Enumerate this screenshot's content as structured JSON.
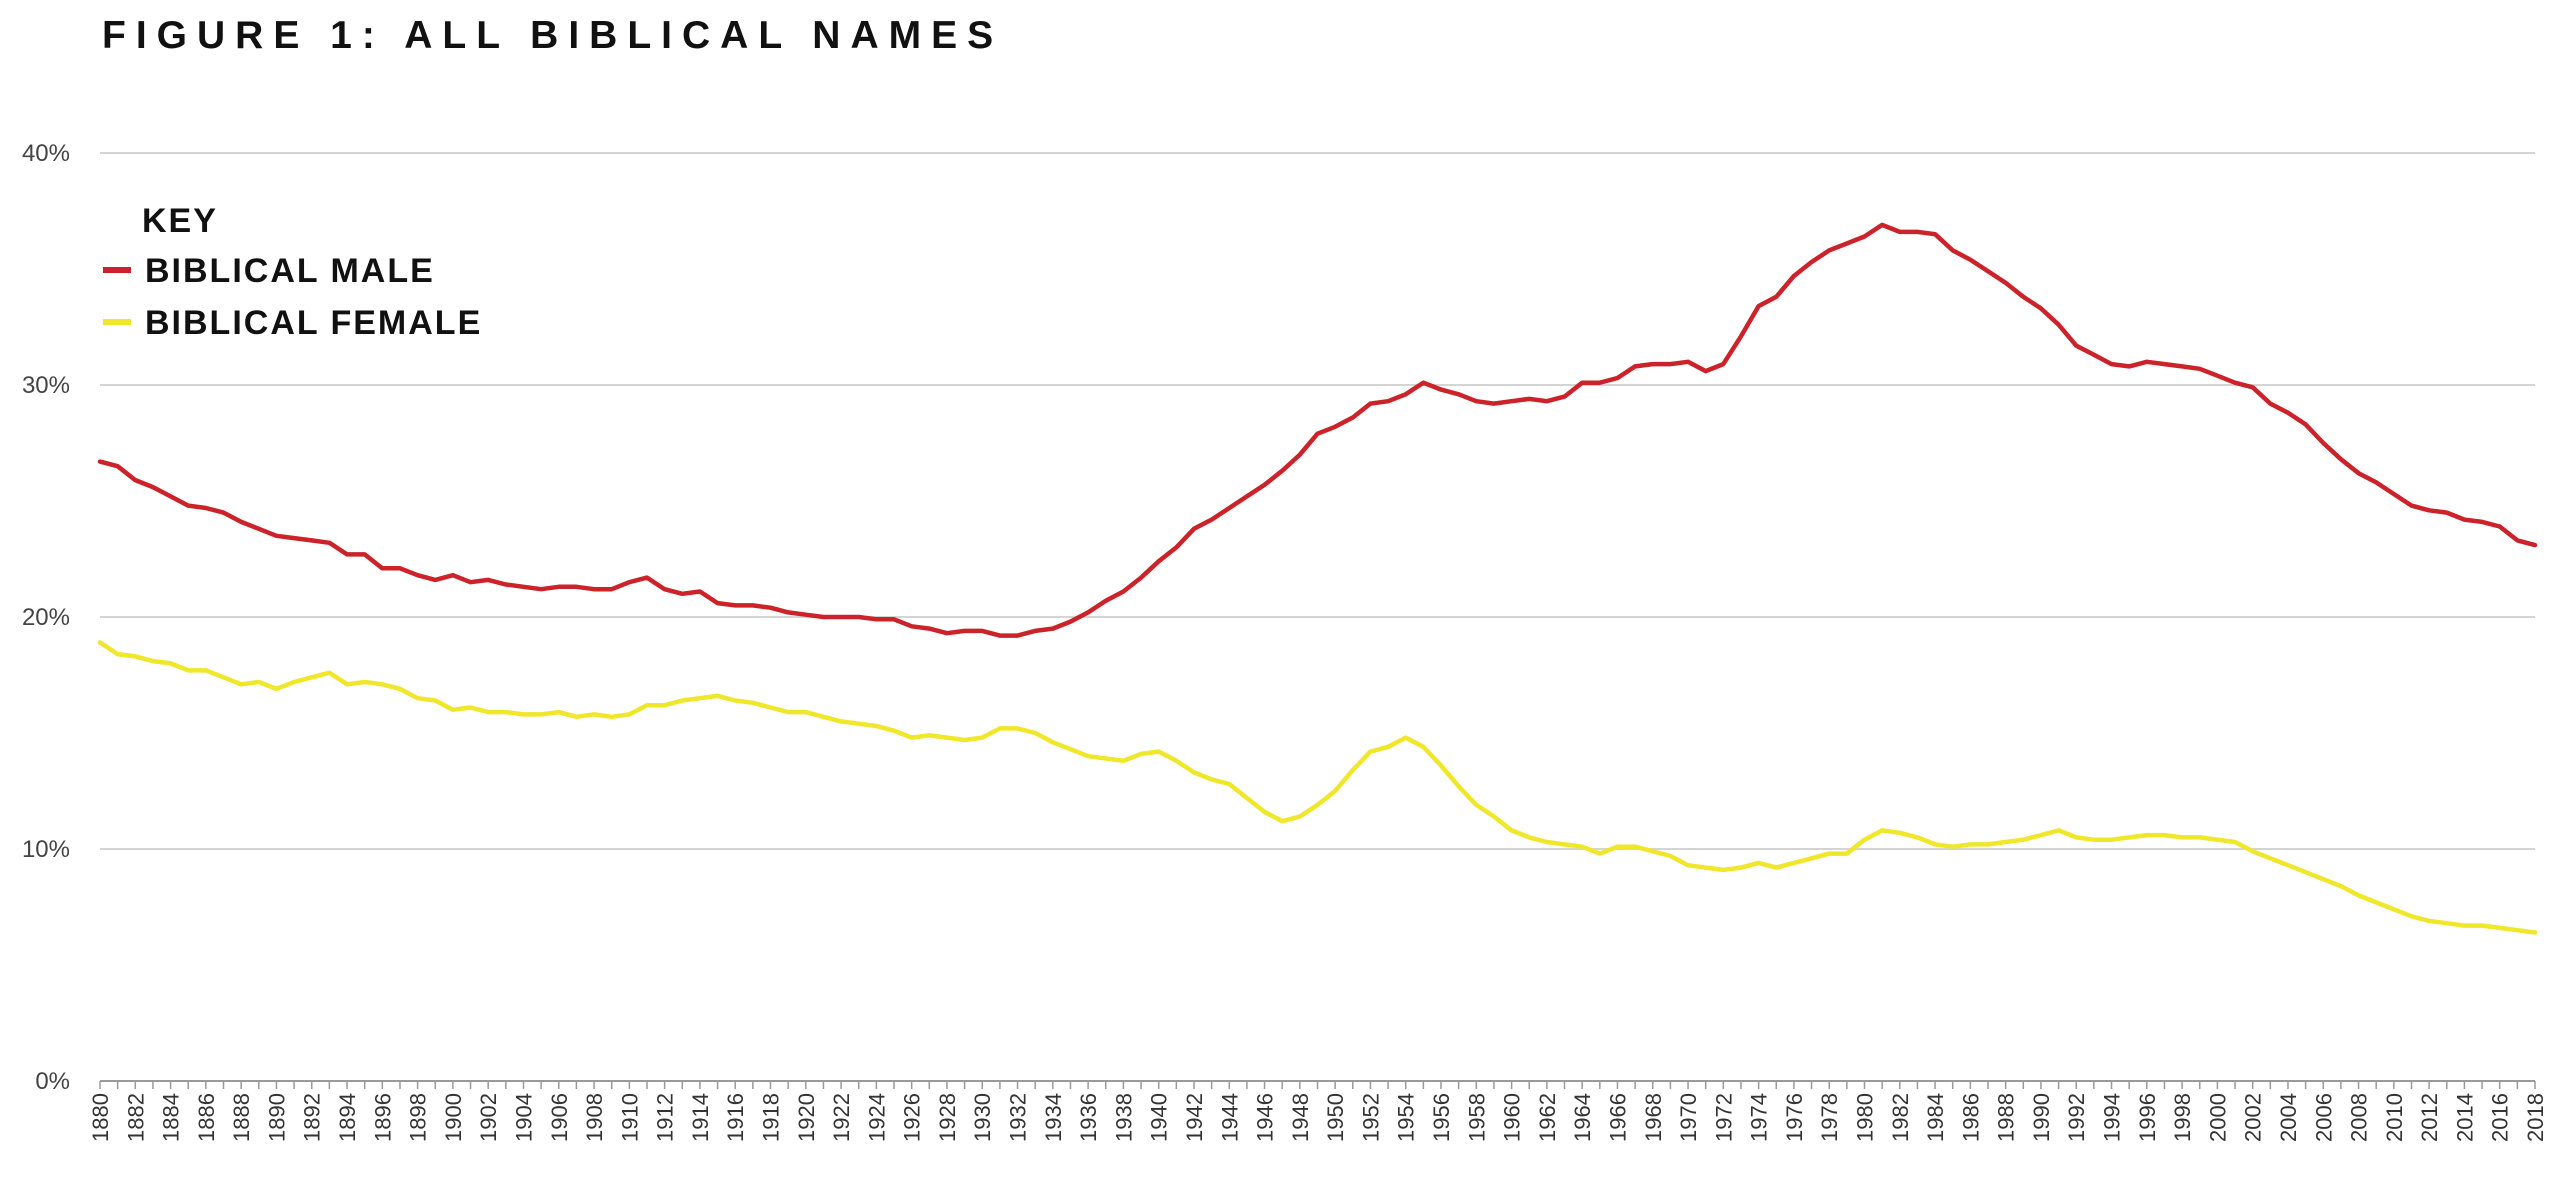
{
  "chart_data": {
    "type": "line",
    "title": "FIGURE 1: ALL BIBLICAL NAMES",
    "xlabel": "",
    "ylabel": "",
    "ylim": [
      0,
      40
    ],
    "yticks": [
      "0%",
      "10%",
      "20%",
      "30%",
      "40%"
    ],
    "ytick_values": [
      0,
      10,
      20,
      30,
      40
    ],
    "x": [
      1880,
      1881,
      1882,
      1883,
      1884,
      1885,
      1886,
      1887,
      1888,
      1889,
      1890,
      1891,
      1892,
      1893,
      1894,
      1895,
      1896,
      1897,
      1898,
      1899,
      1900,
      1901,
      1902,
      1903,
      1904,
      1905,
      1906,
      1907,
      1908,
      1909,
      1910,
      1911,
      1912,
      1913,
      1914,
      1915,
      1916,
      1917,
      1918,
      1919,
      1920,
      1921,
      1922,
      1923,
      1924,
      1925,
      1926,
      1927,
      1928,
      1929,
      1930,
      1931,
      1932,
      1933,
      1934,
      1935,
      1936,
      1937,
      1938,
      1939,
      1940,
      1941,
      1942,
      1943,
      1944,
      1945,
      1946,
      1947,
      1948,
      1949,
      1950,
      1951,
      1952,
      1953,
      1954,
      1955,
      1956,
      1957,
      1958,
      1959,
      1960,
      1961,
      1962,
      1963,
      1964,
      1965,
      1966,
      1967,
      1968,
      1969,
      1970,
      1971,
      1972,
      1973,
      1974,
      1975,
      1976,
      1977,
      1978,
      1979,
      1980,
      1981,
      1982,
      1983,
      1984,
      1985,
      1986,
      1987,
      1988,
      1989,
      1990,
      1991,
      1992,
      1993,
      1994,
      1995,
      1996,
      1997,
      1998,
      1999,
      2000,
      2001,
      2002,
      2003,
      2004,
      2005,
      2006,
      2007,
      2008,
      2009,
      2010,
      2011,
      2012,
      2013,
      2014,
      2015,
      2016,
      2017,
      2018
    ],
    "series": [
      {
        "name": "BIBLICAL MALE",
        "color": "#cc2229",
        "values": [
          26.7,
          26.5,
          25.9,
          25.6,
          25.2,
          24.8,
          24.7,
          24.5,
          24.1,
          23.8,
          23.5,
          23.4,
          23.3,
          23.2,
          22.7,
          22.7,
          22.1,
          22.1,
          21.8,
          21.6,
          21.8,
          21.5,
          21.6,
          21.4,
          21.3,
          21.2,
          21.3,
          21.3,
          21.2,
          21.2,
          21.5,
          21.7,
          21.2,
          21.0,
          21.1,
          20.6,
          20.5,
          20.5,
          20.4,
          20.2,
          20.1,
          20.0,
          20.0,
          20.0,
          19.9,
          19.9,
          19.6,
          19.5,
          19.3,
          19.4,
          19.4,
          19.2,
          19.2,
          19.4,
          19.5,
          19.8,
          20.2,
          20.7,
          21.1,
          21.7,
          22.4,
          23.0,
          23.8,
          24.2,
          24.7,
          25.2,
          25.7,
          26.3,
          27.0,
          27.9,
          28.2,
          28.6,
          29.2,
          29.3,
          29.6,
          30.1,
          29.8,
          29.6,
          29.3,
          29.2,
          29.3,
          29.4,
          29.3,
          29.5,
          30.1,
          30.1,
          30.3,
          30.8,
          30.9,
          30.9,
          31.0,
          30.6,
          30.9,
          32.1,
          33.4,
          33.8,
          34.7,
          35.3,
          35.8,
          36.1,
          36.4,
          36.9,
          36.6,
          36.6,
          36.5,
          35.8,
          35.4,
          34.9,
          34.4,
          33.8,
          33.3,
          32.6,
          31.7,
          31.3,
          30.9,
          30.8,
          31.0,
          30.9,
          30.8,
          30.7,
          30.4,
          30.1,
          29.9,
          29.2,
          28.8,
          28.3,
          27.5,
          26.8,
          26.2,
          25.8,
          25.3,
          24.8,
          24.6,
          24.5,
          24.2,
          24.1,
          23.9,
          23.3,
          23.1
        ]
      },
      {
        "name": "BIBLICAL FEMALE",
        "color": "#f0e62a",
        "values": [
          18.9,
          18.4,
          18.3,
          18.1,
          18.0,
          17.7,
          17.7,
          17.4,
          17.1,
          17.2,
          16.9,
          17.2,
          17.4,
          17.6,
          17.1,
          17.2,
          17.1,
          16.9,
          16.5,
          16.4,
          16.0,
          16.1,
          15.9,
          15.9,
          15.8,
          15.8,
          15.9,
          15.7,
          15.8,
          15.7,
          15.8,
          16.2,
          16.2,
          16.4,
          16.5,
          16.6,
          16.4,
          16.3,
          16.1,
          15.9,
          15.9,
          15.7,
          15.5,
          15.4,
          15.3,
          15.1,
          14.8,
          14.9,
          14.8,
          14.7,
          14.8,
          15.2,
          15.2,
          15.0,
          14.6,
          14.3,
          14.0,
          13.9,
          13.8,
          14.1,
          14.2,
          13.8,
          13.3,
          13.0,
          12.8,
          12.2,
          11.6,
          11.2,
          11.4,
          11.9,
          12.5,
          13.4,
          14.2,
          14.4,
          14.8,
          14.4,
          13.6,
          12.7,
          11.9,
          11.4,
          10.8,
          10.5,
          10.3,
          10.2,
          10.1,
          9.8,
          10.1,
          10.1,
          9.9,
          9.7,
          9.3,
          9.2,
          9.1,
          9.2,
          9.4,
          9.2,
          9.4,
          9.6,
          9.8,
          9.8,
          10.4,
          10.8,
          10.7,
          10.5,
          10.2,
          10.1,
          10.2,
          10.2,
          10.3,
          10.4,
          10.6,
          10.8,
          10.5,
          10.4,
          10.4,
          10.5,
          10.6,
          10.6,
          10.5,
          10.5,
          10.4,
          10.3,
          9.9,
          9.6,
          9.3,
          9.0,
          8.7,
          8.4,
          8.0,
          7.7,
          7.4,
          7.1,
          6.9,
          6.8,
          6.7,
          6.7,
          6.6,
          6.5,
          6.4
        ]
      }
    ],
    "legend": {
      "title": "KEY",
      "position": "top-left"
    },
    "grid": true
  }
}
